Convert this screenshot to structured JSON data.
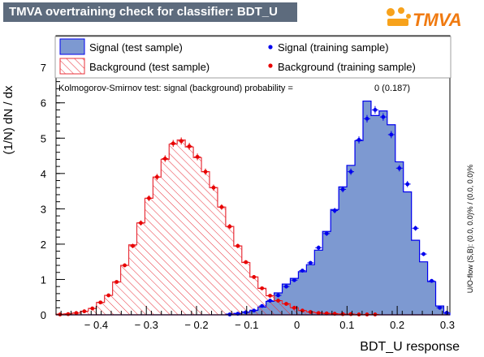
{
  "header": {
    "title": "TMVA overtraining check for classifier: BDT_U",
    "logo_text": "TMVA"
  },
  "chart_data": {
    "type": "bar",
    "xlabel": "BDT_U response",
    "ylabel": "(1/N) dN / dx",
    "xlim": [
      -0.48,
      0.305
    ],
    "ylim": [
      0,
      7.9
    ],
    "x_ticks": [
      -0.4,
      -0.3,
      -0.2,
      -0.1,
      0,
      0.1,
      0.2,
      0.3
    ],
    "x_tick_labels": [
      "− 0.4",
      "− 0.3",
      "− 0.2",
      "− 0.1",
      "0",
      "0.1",
      "0.2",
      "0.3"
    ],
    "y_ticks": [
      0,
      1,
      2,
      3,
      4,
      5,
      6,
      7
    ],
    "y_tick_labels": [
      "0",
      "1",
      "2",
      "3",
      "4",
      "5",
      "6",
      "7"
    ],
    "bin_edges": [
      -0.48,
      -0.4639,
      -0.4478,
      -0.4317,
      -0.4156,
      -0.3995,
      -0.3834,
      -0.3673,
      -0.3512,
      -0.3351,
      -0.319,
      -0.3029,
      -0.2868,
      -0.2707,
      -0.2546,
      -0.2385,
      -0.2224,
      -0.2063,
      -0.1902,
      -0.1741,
      -0.158,
      -0.1419,
      -0.1258,
      -0.1097,
      -0.0936,
      -0.0775,
      -0.0614,
      -0.0453,
      -0.0292,
      -0.0131,
      0.003,
      0.0191,
      0.0352,
      0.0513,
      0.0674,
      0.0835,
      0.0996,
      0.1157,
      0.1318,
      0.1479,
      0.164,
      0.1801,
      0.1962,
      0.2123,
      0.2284,
      0.2445,
      0.2606,
      0.2767,
      0.2928,
      0.305
    ],
    "series": [
      {
        "name": "Signal (test sample)",
        "style": "filled",
        "color": "#7d99d1",
        "edge_color": "#0000ee",
        "values": [
          0,
          0,
          0,
          0,
          0,
          0,
          0,
          0,
          0,
          0,
          0,
          0,
          0,
          0,
          0,
          0,
          0,
          0,
          0,
          0,
          0,
          0.02,
          0.04,
          0.08,
          0.13,
          0.22,
          0.38,
          0.62,
          0.87,
          1.03,
          1.22,
          1.42,
          1.83,
          2.36,
          2.98,
          3.62,
          4.23,
          4.93,
          6.05,
          5.64,
          5.77,
          5.38,
          4.33,
          3.48,
          2.11,
          1.5,
          0.94,
          0.25,
          0.05
        ]
      },
      {
        "name": "Background (test sample)",
        "style": "hatched",
        "color": "#e8303a",
        "values": [
          0.02,
          0.03,
          0.05,
          0.1,
          0.18,
          0.35,
          0.55,
          0.93,
          1.4,
          1.98,
          2.6,
          3.3,
          3.9,
          4.4,
          4.83,
          4.95,
          4.75,
          4.45,
          4.05,
          3.6,
          3.05,
          2.5,
          1.95,
          1.48,
          1.07,
          0.75,
          0.54,
          0.4,
          0.31,
          0.2,
          0.12,
          0.08,
          0.06,
          0.04,
          0.03,
          0.02,
          0.02,
          0.01,
          0.01,
          0.01,
          0,
          0,
          0,
          0,
          0,
          0,
          0,
          0,
          0
        ]
      },
      {
        "name": "Signal (training sample)",
        "style": "markers",
        "color": "#0000ee",
        "values": [
          0,
          0,
          0,
          0,
          0,
          0,
          0,
          0,
          0,
          0,
          0,
          0,
          0,
          0,
          0,
          0,
          0,
          0,
          0,
          0,
          0,
          0.01,
          0.03,
          0.07,
          0.12,
          0.25,
          0.4,
          0.55,
          0.8,
          0.98,
          1.25,
          1.47,
          1.9,
          2.3,
          2.95,
          3.55,
          4.05,
          4.95,
          5.55,
          5.8,
          5.6,
          5.1,
          4.15,
          3.7,
          2.45,
          1.72,
          0.96,
          0.2,
          0.06
        ]
      },
      {
        "name": "Background (training sample)",
        "style": "markers",
        "color": "#e80000",
        "values": [
          0.01,
          0.02,
          0.05,
          0.1,
          0.18,
          0.35,
          0.55,
          0.93,
          1.4,
          1.95,
          2.6,
          3.3,
          3.9,
          4.42,
          4.85,
          4.92,
          4.77,
          4.47,
          4.05,
          3.6,
          3.05,
          2.5,
          1.95,
          1.49,
          1.07,
          0.75,
          0.54,
          0.4,
          0.31,
          0.2,
          0.12,
          0.08,
          0.05,
          0.04,
          0.03,
          0.02,
          0.02,
          0.01,
          0.01,
          0.01,
          0,
          0,
          0,
          0,
          0,
          0,
          0,
          0,
          0
        ]
      }
    ],
    "ks_text": "Kolmogorov-Smirnov test: signal (background) probability =",
    "ks_value": "0 (0.187)",
    "overflow_text": "U/O-flow (S,B): (0.0, 0.0)% / (0.0, 0.0)%",
    "legend_placement": "top"
  }
}
